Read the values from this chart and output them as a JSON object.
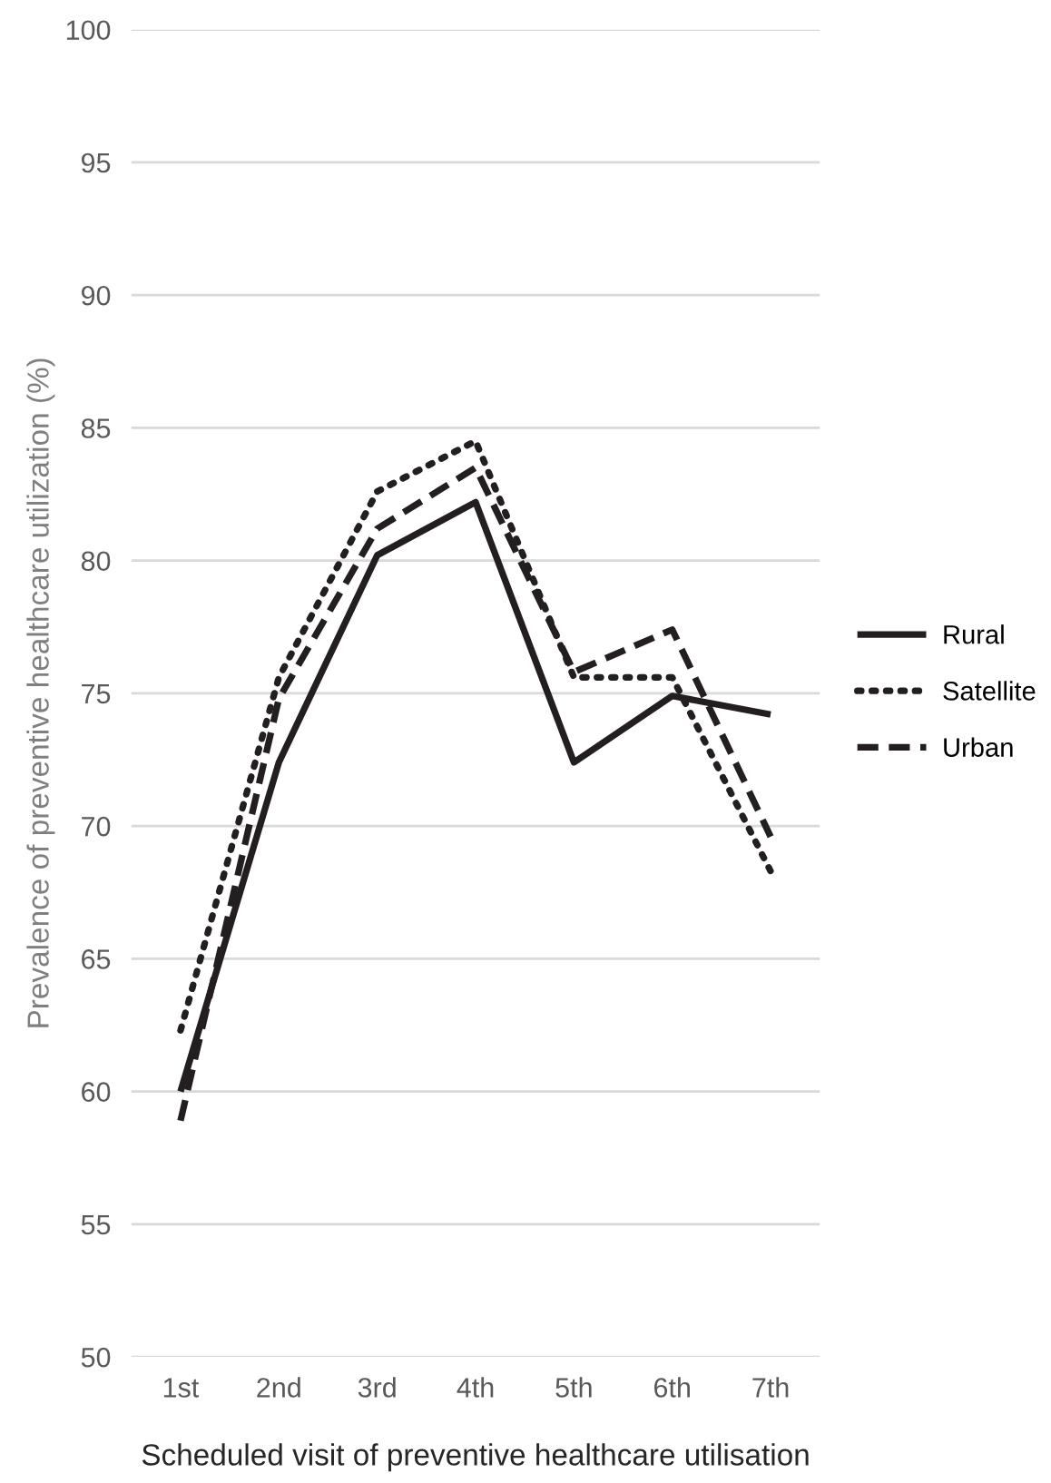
{
  "chart_data": {
    "type": "line",
    "xlabel": "Scheduled visit of preventive healthcare utilisation",
    "ylabel": "Prevalence of preventive healthcare utilization (%)",
    "categories": [
      "1st",
      "2nd",
      "3rd",
      "4th",
      "5th",
      "6th",
      "7th"
    ],
    "series": [
      {
        "name": "Rural",
        "color": "#231f20",
        "line_style": "solid",
        "values": [
          60.0,
          72.4,
          80.2,
          82.2,
          72.4,
          74.9,
          74.2
        ]
      },
      {
        "name": "Satellite",
        "color": "#231f20",
        "line_style": "dotted",
        "values": [
          62.3,
          75.6,
          82.6,
          84.5,
          75.6,
          75.6,
          68.3
        ]
      },
      {
        "name": "Urban",
        "color": "#231f20",
        "line_style": "dashed",
        "values": [
          58.9,
          74.8,
          81.2,
          83.5,
          75.8,
          77.4,
          69.6
        ]
      }
    ],
    "ylim": [
      50,
      100
    ],
    "yticks": [
      50,
      55,
      60,
      65,
      70,
      75,
      80,
      85,
      90,
      95,
      100
    ],
    "grid": "y",
    "legend": "right",
    "marker": "none"
  }
}
